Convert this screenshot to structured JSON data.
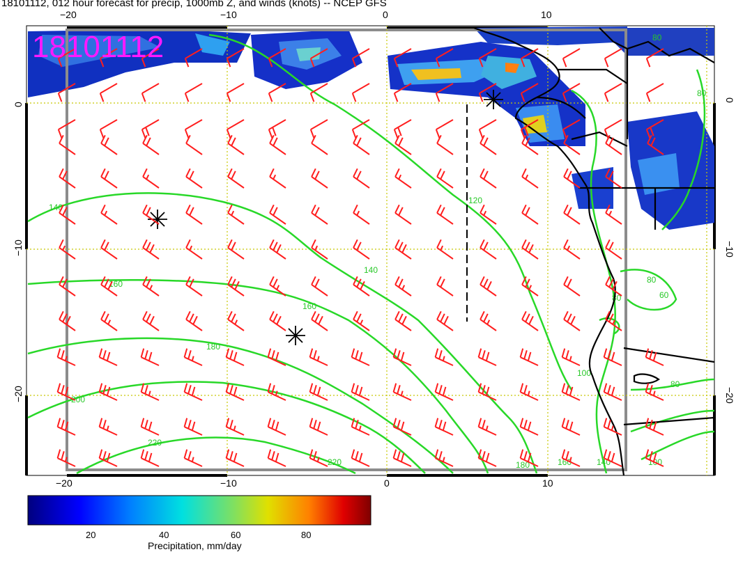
{
  "title": "18101112, 012 hour forecast for precip, 1000mb Z, and winds (knots) -- NCEP GFS",
  "stamp": "18101112",
  "axes": {
    "lon_top": [
      "−20",
      "−10",
      "0",
      "10"
    ],
    "lon_bottom": [
      "−20",
      "−10",
      "0",
      "10"
    ],
    "lat_left": [
      "0",
      "−10",
      "−20"
    ],
    "lat_right": [
      "0",
      "−10",
      "−20"
    ]
  },
  "contours": {
    "color": "#28c828",
    "labels": [
      "140",
      "160",
      "180",
      "200",
      "220",
      "220",
      "160",
      "140",
      "120",
      "180",
      "160",
      "140",
      "80",
      "80",
      "100",
      "80",
      "60",
      "100",
      "80",
      "80"
    ]
  },
  "colorbar": {
    "title": "Precipitation, mm/day",
    "ticks": [
      "20",
      "40",
      "60",
      "80"
    ]
  },
  "colors": {
    "barb": "#ff1e1e",
    "coast": "#000000",
    "grid": "#c8c800",
    "frame": "#8c8c8c",
    "stamp": "#ff19ff"
  }
}
